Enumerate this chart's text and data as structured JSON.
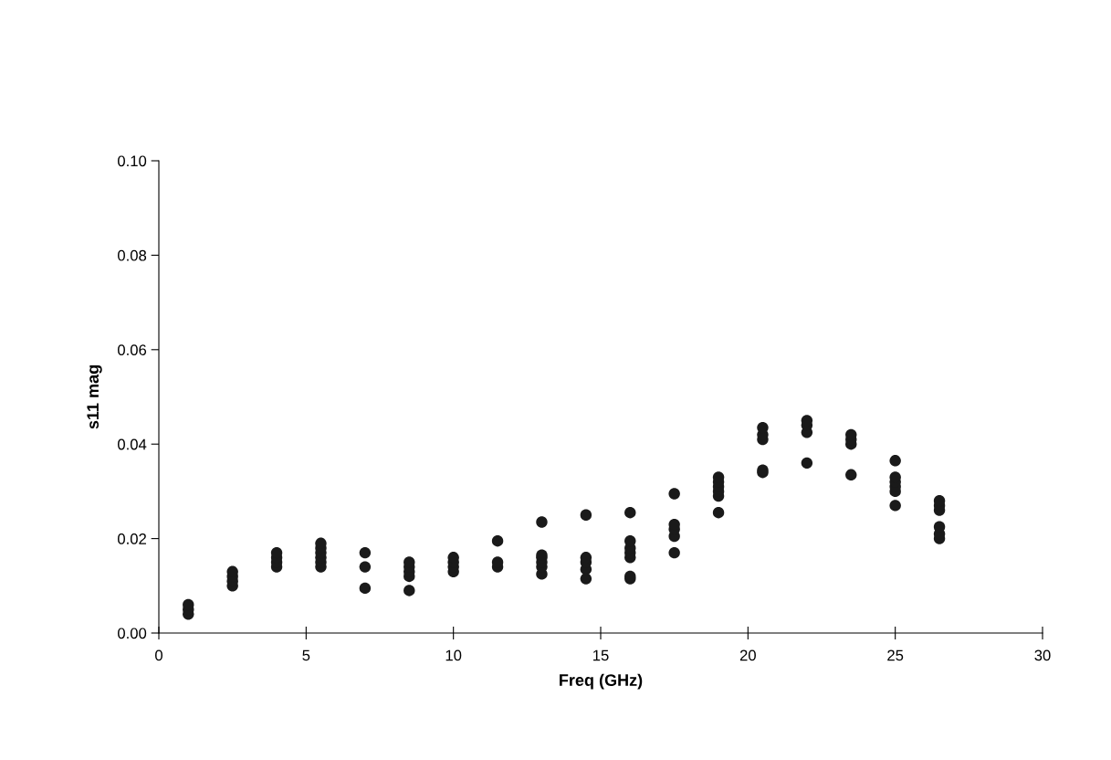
{
  "chart_data": {
    "type": "scatter",
    "xlabel": "Freq (GHz)",
    "ylabel": "s11 mag",
    "xlim": [
      0,
      30
    ],
    "xticks": [
      0,
      5,
      10,
      15,
      20,
      25,
      30
    ],
    "ylim": [
      0,
      0.1
    ],
    "yticks": [
      {
        "value": 0,
        "label": "0.00"
      },
      {
        "value": 0.02,
        "label": "0.02"
      },
      {
        "value": 0.04,
        "label": "0.04"
      },
      {
        "value": 0.06,
        "label": "0.06"
      },
      {
        "value": 0.08,
        "label": "0.08"
      },
      {
        "value": 0.1,
        "label": "0.10"
      }
    ],
    "grid": false,
    "marker": "circle",
    "series": [
      {
        "color": "#1a1a1a",
        "x": [
          1,
          1,
          1,
          2.5,
          2.5,
          2.5,
          2.5,
          4,
          4,
          4,
          4,
          5.5,
          5.5,
          5.5,
          5.5,
          5.5,
          5.5,
          7,
          7,
          7,
          8.5,
          8.5,
          8.5,
          8.5,
          8.5,
          10,
          10,
          10,
          10,
          11.5,
          11.5,
          11.5,
          13,
          13,
          13,
          13,
          13,
          13,
          14.5,
          14.5,
          14.5,
          14.5,
          14.5,
          16,
          16,
          16,
          16,
          16,
          16,
          16,
          17.5,
          17.5,
          17.5,
          17.5,
          17.5,
          19,
          19,
          19,
          19,
          19,
          19,
          20.5,
          20.5,
          20.5,
          20.5,
          20.5,
          22,
          22,
          22,
          22,
          23.5,
          23.5,
          23.5,
          23.5,
          25,
          25,
          25,
          25,
          25,
          25,
          26.5,
          26.5,
          26.5,
          26.5,
          26.5,
          26.5
        ],
        "values": [
          0.004,
          0.005,
          0.006,
          0.01,
          0.011,
          0.012,
          0.013,
          0.014,
          0.015,
          0.016,
          0.017,
          0.014,
          0.015,
          0.016,
          0.017,
          0.018,
          0.019,
          0.0095,
          0.014,
          0.017,
          0.009,
          0.012,
          0.013,
          0.014,
          0.015,
          0.013,
          0.014,
          0.015,
          0.016,
          0.014,
          0.015,
          0.0195,
          0.0125,
          0.014,
          0.015,
          0.016,
          0.0165,
          0.0235,
          0.0115,
          0.0135,
          0.015,
          0.016,
          0.025,
          0.0115,
          0.012,
          0.016,
          0.017,
          0.018,
          0.0195,
          0.0255,
          0.017,
          0.0205,
          0.022,
          0.023,
          0.0295,
          0.0255,
          0.029,
          0.03,
          0.031,
          0.032,
          0.033,
          0.034,
          0.0345,
          0.041,
          0.042,
          0.0435,
          0.036,
          0.0425,
          0.044,
          0.045,
          0.0335,
          0.04,
          0.041,
          0.042,
          0.027,
          0.03,
          0.031,
          0.032,
          0.033,
          0.0365,
          0.02,
          0.021,
          0.0225,
          0.026,
          0.027,
          0.028
        ]
      }
    ]
  }
}
